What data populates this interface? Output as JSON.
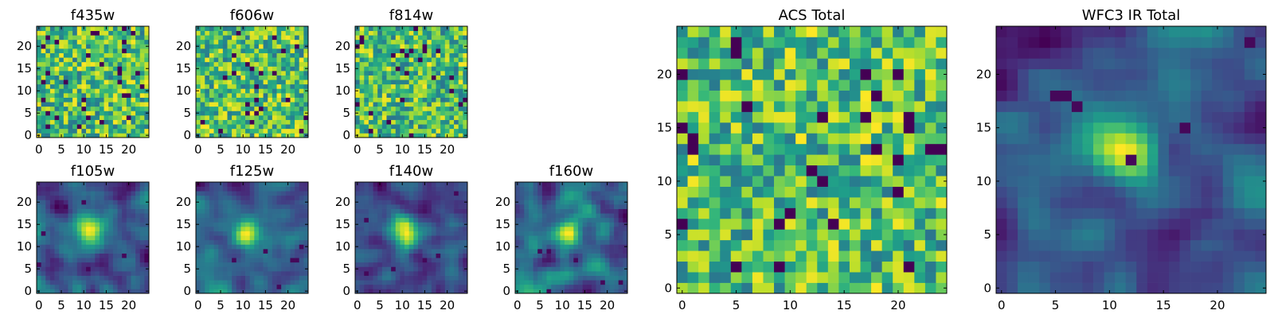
{
  "chart_data": [
    {
      "type": "heatmap",
      "title": "f435w",
      "grid_size": 25,
      "xlim": [
        0,
        24
      ],
      "ylim": [
        0,
        24
      ],
      "xticks": [
        0,
        5,
        10,
        15,
        20
      ],
      "yticks": [
        0,
        5,
        10,
        15,
        20
      ],
      "pattern": "noise",
      "colormap": "viridis"
    },
    {
      "type": "heatmap",
      "title": "f606w",
      "grid_size": 25,
      "xlim": [
        0,
        24
      ],
      "ylim": [
        0,
        24
      ],
      "xticks": [
        0,
        5,
        10,
        15,
        20
      ],
      "yticks": [
        0,
        5,
        10,
        15,
        20
      ],
      "pattern": "noise",
      "colormap": "viridis"
    },
    {
      "type": "heatmap",
      "title": "f814w",
      "grid_size": 25,
      "xlim": [
        0,
        24
      ],
      "ylim": [
        0,
        24
      ],
      "xticks": [
        0,
        5,
        10,
        15,
        20
      ],
      "yticks": [
        0,
        5,
        10,
        15,
        20
      ],
      "pattern": "noise",
      "colormap": "viridis"
    },
    {
      "type": "heatmap",
      "title": "f105w",
      "grid_size": 25,
      "xlim": [
        0,
        24
      ],
      "ylim": [
        0,
        24
      ],
      "xticks": [
        0,
        5,
        10,
        15,
        20
      ],
      "yticks": [
        0,
        5,
        10,
        15,
        20
      ],
      "pattern": "blob",
      "colormap": "viridis"
    },
    {
      "type": "heatmap",
      "title": "f125w",
      "grid_size": 25,
      "xlim": [
        0,
        24
      ],
      "ylim": [
        0,
        24
      ],
      "xticks": [
        0,
        5,
        10,
        15,
        20
      ],
      "yticks": [
        0,
        5,
        10,
        15,
        20
      ],
      "pattern": "blob",
      "colormap": "viridis"
    },
    {
      "type": "heatmap",
      "title": "f140w",
      "grid_size": 25,
      "xlim": [
        0,
        24
      ],
      "ylim": [
        0,
        24
      ],
      "xticks": [
        0,
        5,
        10,
        15,
        20
      ],
      "yticks": [
        0,
        5,
        10,
        15,
        20
      ],
      "pattern": "blob",
      "colormap": "viridis"
    },
    {
      "type": "heatmap",
      "title": "f160w",
      "grid_size": 25,
      "xlim": [
        0,
        24
      ],
      "ylim": [
        0,
        24
      ],
      "xticks": [
        0,
        5,
        10,
        15,
        20
      ],
      "yticks": [
        0,
        5,
        10,
        15,
        20
      ],
      "pattern": "blob",
      "colormap": "viridis"
    },
    {
      "type": "heatmap",
      "title": "ACS Total",
      "grid_size": 25,
      "xlim": [
        0,
        24
      ],
      "ylim": [
        0,
        24
      ],
      "xticks": [
        0,
        5,
        10,
        15,
        20
      ],
      "yticks": [
        0,
        5,
        10,
        15,
        20
      ],
      "pattern": "noise",
      "colormap": "viridis"
    },
    {
      "type": "heatmap",
      "title": "WFC3 IR Total",
      "grid_size": 25,
      "xlim": [
        0,
        24
      ],
      "ylim": [
        0,
        24
      ],
      "xticks": [
        0,
        5,
        10,
        15,
        20
      ],
      "yticks": [
        0,
        5,
        10,
        15,
        20
      ],
      "pattern": "blob",
      "colormap": "viridis"
    }
  ]
}
